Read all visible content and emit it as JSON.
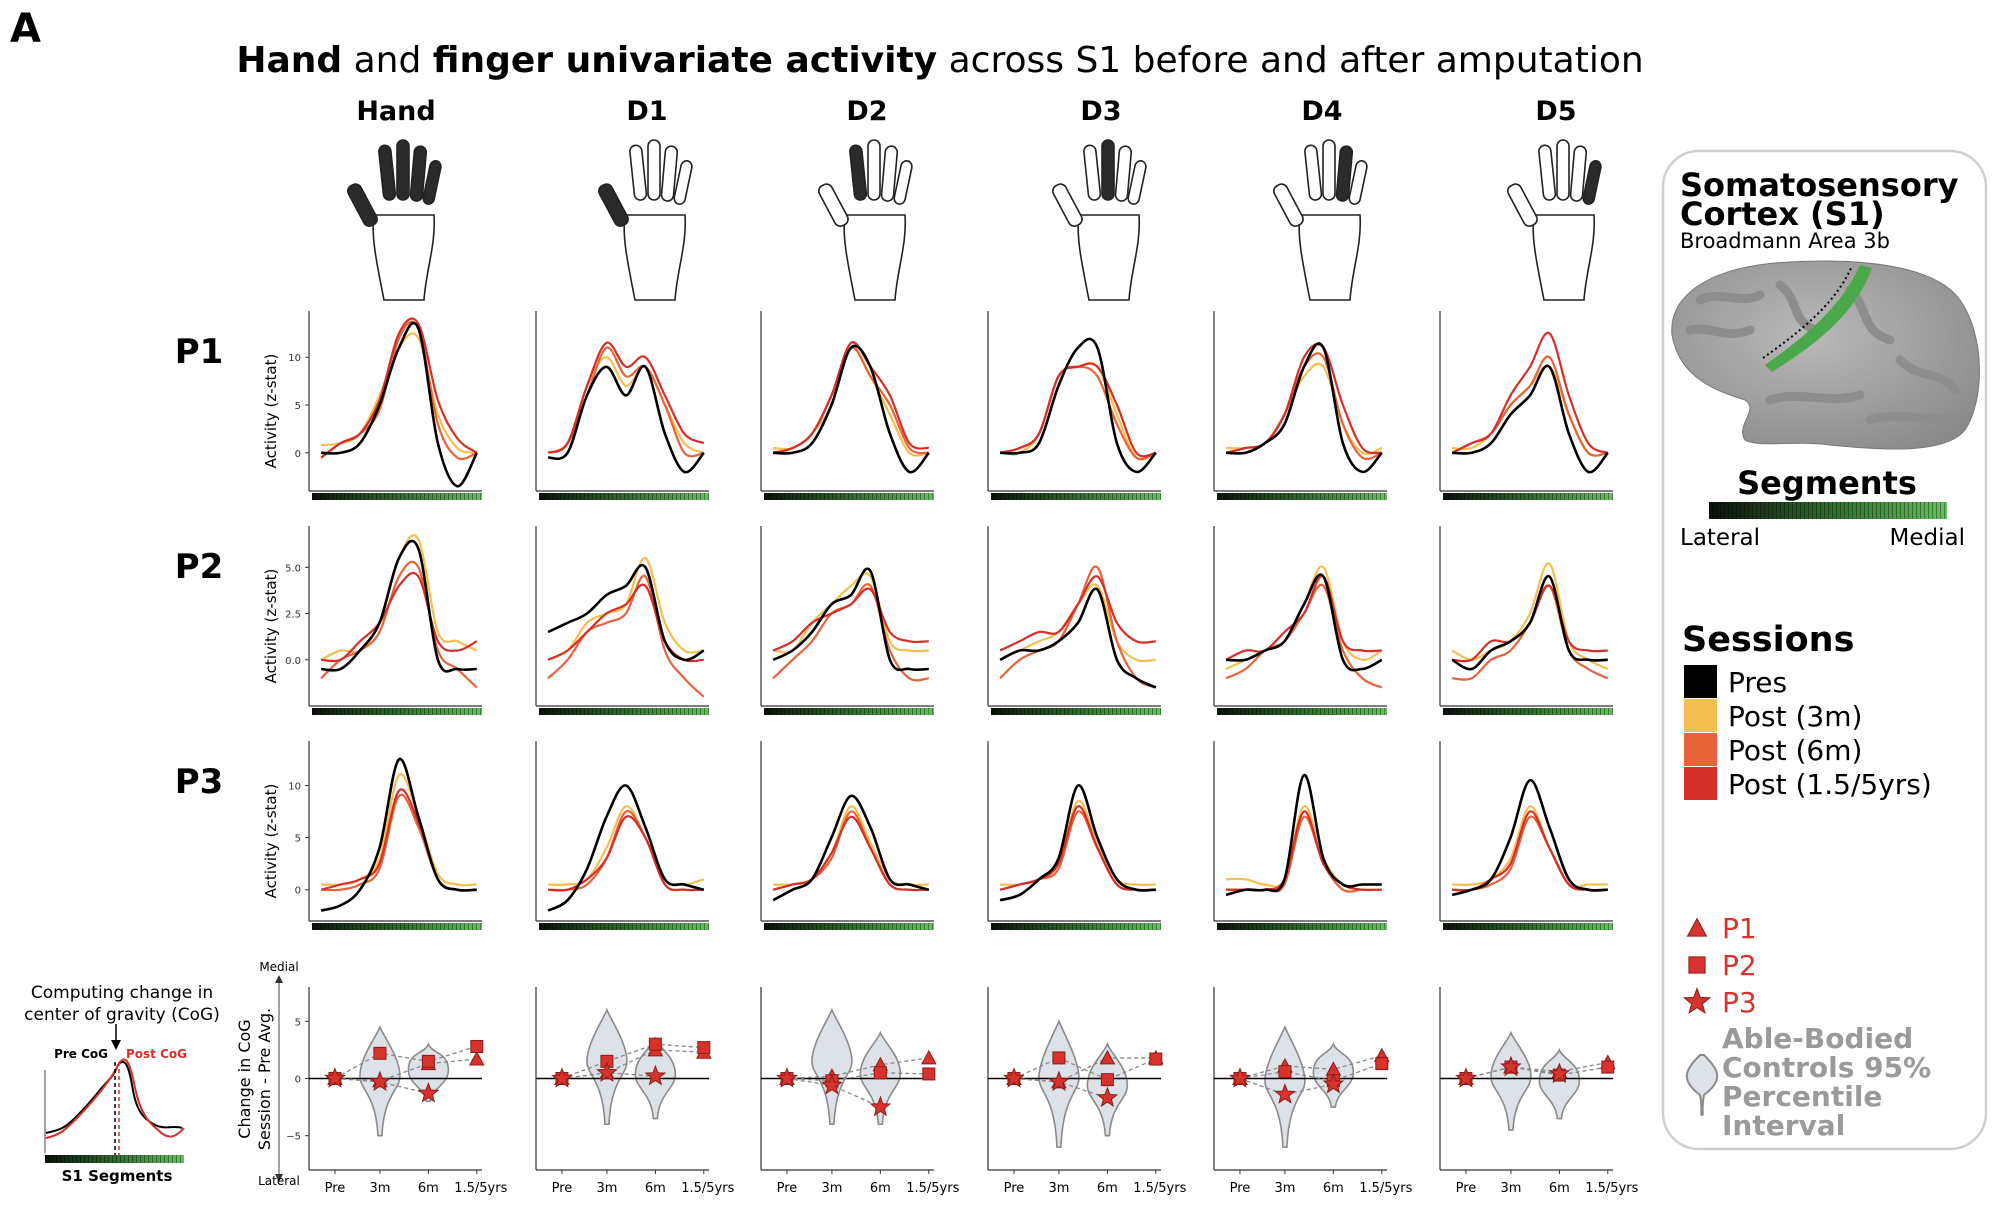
{
  "panel_letter": "A",
  "title": {
    "bold1": "Hand",
    "plain1": " and ",
    "bold2": "finger univariate activity",
    "plain2": " across S1 before and after amputation"
  },
  "columns": [
    "Hand",
    "D1",
    "D2",
    "D3",
    "D4",
    "D5"
  ],
  "rows": [
    "P1",
    "P2",
    "P3"
  ],
  "activity_ylabel": "Activity (z-stat)",
  "cog_ylabel_line1": "Change in CoG",
  "cog_ylabel_line2": "Session - Pre Avg.",
  "cog_medial": "Medial",
  "cog_lateral": "Lateral",
  "inset": {
    "line1": "Computing change in",
    "line2": "center of gravity (CoG)",
    "pre": "Pre CoG",
    "post": "Post CoG",
    "xlabel": "S1 Segments"
  },
  "legend": {
    "title1": "Somatosensory",
    "title2": "Cortex (S1)",
    "subtitle": "Broadmann Area 3b",
    "segments": "Segments",
    "lateral": "Lateral",
    "medial": "Medial",
    "sessions_title": "Sessions",
    "sessions": [
      {
        "label": "Pres",
        "color": "#000000"
      },
      {
        "label": "Post (3m)",
        "color": "#f5bf4f"
      },
      {
        "label": "Post (6m)",
        "color": "#e8623a"
      },
      {
        "label": "Post (1.5/5yrs)",
        "color": "#d52f2a"
      }
    ],
    "participants": [
      {
        "label": "P1",
        "marker": "triangle"
      },
      {
        "label": "P2",
        "marker": "square"
      },
      {
        "label": "P3",
        "marker": "star"
      }
    ],
    "marker_color": "#d8322c",
    "controls": [
      "Able-Bodied",
      "Controls 95%",
      "Percentile",
      "Interval"
    ]
  },
  "chart_data": {
    "type": "line",
    "x_description": "S1 segments, lateral to medial (0-8)",
    "row_ylims": {
      "P1": [
        -4,
        14
      ],
      "P2": [
        -2.5,
        6.8
      ],
      "P3": [
        -3,
        13.5
      ]
    },
    "row_ticks": {
      "P1": [
        "0",
        "5",
        "10"
      ],
      "P2": [
        "0.0",
        "2.5",
        "5.0"
      ],
      "P3": [
        "0",
        "5",
        "10"
      ]
    },
    "row_tick_values": {
      "P1": [
        0,
        5,
        10
      ],
      "P2": [
        0,
        2.5,
        5
      ],
      "P3": [
        0,
        5,
        10
      ]
    },
    "activity": {
      "P1": {
        "Hand": {
          "pre": [
            0,
            0,
            1,
            5,
            11,
            13,
            1,
            -3.5,
            0
          ],
          "m3": [
            0.8,
            1,
            2,
            6,
            11,
            12,
            4,
            0.5,
            0
          ],
          "m6": [
            -0.5,
            1,
            2,
            4.5,
            12,
            13,
            3,
            -0.5,
            0
          ],
          "y15": [
            -0.5,
            1,
            2,
            5.5,
            12.5,
            13.5,
            5.5,
            1.5,
            0
          ]
        },
        "D1": {
          "pre": [
            -0.5,
            0,
            6,
            9,
            6,
            9,
            2,
            -2,
            0
          ],
          "m3": [
            0,
            1,
            7,
            10,
            7,
            9,
            5,
            1,
            0
          ],
          "m6": [
            0,
            1,
            6,
            11,
            8,
            9,
            5,
            0,
            0
          ],
          "y15": [
            0,
            1,
            7,
            11.5,
            9,
            10,
            6,
            2,
            1
          ]
        },
        "D2": {
          "pre": [
            0,
            0,
            1,
            5,
            11,
            9,
            2,
            -2,
            0
          ],
          "m3": [
            0.5,
            0.5,
            2,
            5,
            11,
            8,
            4,
            0,
            0
          ],
          "m6": [
            0,
            0.5,
            2,
            6,
            11,
            8,
            5,
            0.5,
            0
          ],
          "y15": [
            0,
            0.5,
            2,
            6,
            11.5,
            9,
            6,
            1,
            0.5
          ]
        },
        "D3": {
          "pre": [
            0,
            0,
            1,
            7,
            11,
            11,
            1,
            -2,
            0
          ],
          "m3": [
            0,
            0,
            2,
            8,
            9,
            9,
            4,
            -0.5,
            0
          ],
          "m6": [
            0,
            0.5,
            2,
            8,
            9,
            8,
            3,
            -0.5,
            0
          ],
          "y15": [
            0,
            0.5,
            2,
            8,
            9,
            9,
            5,
            0,
            0
          ]
        },
        "D4": {
          "pre": [
            0,
            0,
            1,
            3,
            9,
            11,
            1,
            -2,
            0
          ],
          "m3": [
            0.5,
            0.5,
            1,
            4,
            8,
            9,
            3,
            0,
            0.5
          ],
          "m6": [
            0,
            0.5,
            1,
            4,
            9,
            10,
            3,
            -0.5,
            0
          ],
          "y15": [
            0,
            0.5,
            1,
            4,
            10,
            11,
            5,
            0.5,
            0
          ]
        },
        "D5": {
          "pre": [
            0,
            0,
            1,
            4,
            6,
            9,
            2,
            -2,
            0
          ],
          "m3": [
            0.5,
            0.5,
            2,
            5,
            7,
            9,
            4,
            0,
            0
          ],
          "m6": [
            0,
            1,
            2,
            5,
            7,
            10,
            4,
            0,
            0
          ],
          "y15": [
            0,
            1,
            2,
            6,
            9,
            12.5,
            6,
            1,
            0
          ]
        }
      },
      "P2": {
        "Hand": {
          "pre": [
            -0.5,
            -0.5,
            0.5,
            2,
            5.5,
            6,
            0,
            -0.5,
            -0.5
          ],
          "m3": [
            0,
            0.5,
            0.5,
            2,
            5.5,
            6.5,
            1.5,
            1,
            0.5
          ],
          "m6": [
            -1,
            0,
            0.5,
            1.5,
            4.5,
            5,
            0.5,
            -0.5,
            -1.5
          ],
          "y15": [
            0,
            0,
            1,
            2,
            4,
            4.5,
            1,
            0.5,
            1
          ]
        },
        "D1": {
          "pre": [
            1.5,
            2,
            2.5,
            3.5,
            4,
            5,
            1,
            0,
            0.5
          ],
          "m3": [
            0,
            0.5,
            2,
            2.5,
            3,
            5.5,
            2,
            0.5,
            0.5
          ],
          "m6": [
            -1,
            0,
            1.5,
            2,
            2.5,
            4.5,
            0.5,
            -1,
            -2
          ],
          "y15": [
            0,
            0.5,
            1.5,
            2.5,
            3,
            4,
            1,
            0,
            0
          ]
        },
        "D2": {
          "pre": [
            0,
            0.5,
            1.5,
            3,
            3.5,
            4.8,
            0,
            -0.5,
            -0.5
          ],
          "m3": [
            0.5,
            0.5,
            2,
            3,
            4,
            4.5,
            1,
            0.5,
            0.5
          ],
          "m6": [
            -1,
            0,
            1,
            2.5,
            3,
            4,
            0.5,
            -1,
            -1
          ],
          "y15": [
            0.5,
            1,
            2,
            2.5,
            3,
            3.8,
            1.5,
            1,
            1
          ]
        },
        "D3": {
          "pre": [
            0,
            0.5,
            0.5,
            1,
            2,
            3.8,
            0,
            -1,
            -1.5
          ],
          "m3": [
            0,
            0.5,
            1,
            1.5,
            3,
            4,
            1,
            0,
            0
          ],
          "m6": [
            -1,
            0,
            0.5,
            1,
            3,
            5,
            1,
            -1,
            -1.5
          ],
          "y15": [
            0.5,
            1,
            1.5,
            1.5,
            3,
            4.5,
            2,
            1,
            1
          ]
        },
        "D4": {
          "pre": [
            0,
            0,
            0.5,
            1,
            3,
            4.5,
            0,
            -0.5,
            0
          ],
          "m3": [
            -0.5,
            0,
            0.5,
            1,
            3,
            5,
            1,
            0,
            0.5
          ],
          "m6": [
            -1,
            -0.5,
            0.5,
            1,
            2.5,
            4,
            0.5,
            -1,
            -1.5
          ],
          "y15": [
            0,
            0.5,
            0.5,
            1.5,
            2.5,
            4.5,
            1,
            0.5,
            0.5
          ]
        },
        "D5": {
          "pre": [
            0,
            -0.5,
            0.5,
            1,
            2,
            4.5,
            0.5,
            0,
            0
          ],
          "m3": [
            0.5,
            0,
            0.5,
            1,
            2.5,
            5.2,
            1,
            0,
            -0.5
          ],
          "m6": [
            -1,
            -1,
            0,
            0.5,
            2,
            4,
            0.5,
            -0.5,
            -1
          ],
          "y15": [
            0,
            0,
            1,
            1,
            2,
            4,
            1,
            0.5,
            0.5
          ]
        }
      },
      "P3": {
        "Hand": {
          "pre": [
            -2,
            -1.5,
            0,
            4,
            12.5,
            7,
            1,
            0,
            0
          ],
          "m3": [
            0.5,
            0.5,
            1,
            3,
            11,
            7,
            1.5,
            0.5,
            0.5
          ],
          "m6": [
            0,
            0,
            0.5,
            2,
            9,
            6,
            1,
            0,
            0
          ],
          "y15": [
            0,
            0.5,
            1,
            2.5,
            9.5,
            6.5,
            1,
            0,
            0
          ]
        },
        "D1": {
          "pre": [
            -2,
            -1,
            2,
            7,
            10,
            6,
            1,
            0.5,
            0
          ],
          "m3": [
            0.5,
            0.5,
            1,
            4,
            8,
            5,
            1,
            0.5,
            1
          ],
          "m6": [
            0,
            0,
            0.5,
            3,
            7.5,
            5,
            0.5,
            0,
            0
          ],
          "y15": [
            0,
            0,
            1,
            3,
            7,
            5,
            0.5,
            0,
            0
          ]
        },
        "D2": {
          "pre": [
            -1,
            0,
            1,
            5,
            9,
            6,
            1,
            0.5,
            0
          ],
          "m3": [
            0.5,
            0.5,
            1,
            3.5,
            8,
            4.5,
            1,
            0.5,
            0.5
          ],
          "m6": [
            0,
            0.5,
            1,
            3,
            7.5,
            4,
            0.5,
            0,
            0
          ],
          "y15": [
            0,
            0.5,
            1,
            3.5,
            7,
            4,
            0.5,
            0,
            0
          ]
        },
        "D3": {
          "pre": [
            -1,
            -0.5,
            1,
            3,
            10,
            5,
            1,
            0,
            0
          ],
          "m3": [
            0.5,
            0.5,
            1,
            2.5,
            8.5,
            4.5,
            1,
            0.5,
            0.5
          ],
          "m6": [
            0,
            0.5,
            1,
            2,
            7.5,
            4,
            0.5,
            0,
            0
          ],
          "y15": [
            0,
            0.5,
            1,
            2.5,
            8,
            4,
            0.5,
            0,
            0
          ]
        },
        "D4": {
          "pre": [
            -0.5,
            0,
            0,
            1,
            11,
            3,
            0.5,
            0.5,
            0.5
          ],
          "m3": [
            1,
            1,
            0.5,
            1,
            8,
            3,
            0.5,
            0.5,
            0.5
          ],
          "m6": [
            0,
            0,
            0,
            0.5,
            7,
            2.5,
            0,
            0,
            0
          ],
          "y15": [
            0,
            0,
            0,
            1,
            7.5,
            2.5,
            0.5,
            0,
            0
          ]
        },
        "D5": {
          "pre": [
            -0.5,
            0,
            1,
            5,
            10.5,
            6,
            1,
            0,
            0
          ],
          "m3": [
            0.5,
            0.5,
            1,
            3,
            8,
            4,
            0.5,
            0.5,
            0.5
          ],
          "m6": [
            0,
            0,
            0.5,
            2,
            7,
            4,
            0.5,
            0,
            0
          ],
          "y15": [
            0,
            0,
            1,
            2.5,
            7.5,
            4,
            0.5,
            0,
            0
          ]
        }
      }
    },
    "cog": {
      "x_labels": [
        "Pre",
        "3m",
        "6m",
        "1.5/5yrs"
      ],
      "ylim": [
        -8,
        8
      ],
      "ticks": [
        5,
        0,
        -5
      ],
      "tick_labels": [
        "5",
        "0",
        "−5"
      ],
      "columns": {
        "Hand": {
          "P1": [
            0,
            -0.2,
            1.3,
            1.7
          ],
          "P2": [
            0,
            2.2,
            1.5,
            2.8
          ],
          "P3": [
            0,
            -0.3,
            -1.3,
            null
          ],
          "violin_3m": [
            -5,
            4.5
          ],
          "violin_6m": [
            -2,
            3
          ]
        },
        "D1": {
          "P1": [
            0,
            0.5,
            2.5,
            2.3
          ],
          "P2": [
            0,
            1.5,
            3,
            2.7
          ],
          "P3": [
            0,
            0.5,
            0.2,
            null
          ],
          "violin_3m": [
            -4,
            6
          ],
          "violin_6m": [
            -3.5,
            3.5
          ]
        },
        "D2": {
          "P1": [
            0,
            0.2,
            1.2,
            1.8
          ],
          "P2": [
            0,
            -0.2,
            0.5,
            0.4
          ],
          "P3": [
            0,
            -0.6,
            -2.5,
            null
          ],
          "violin_3m": [
            -4,
            6
          ],
          "violin_6m": [
            -4,
            4
          ]
        },
        "D3": {
          "P1": [
            0,
            -0.3,
            1.8,
            1.8
          ],
          "P2": [
            0,
            1.8,
            -0.1,
            1.7
          ],
          "P3": [
            0,
            -0.3,
            -1.7,
            null
          ],
          "violin_3m": [
            -6,
            5
          ],
          "violin_6m": [
            -5,
            3
          ]
        },
        "D4": {
          "P1": [
            0,
            1.1,
            0.8,
            2
          ],
          "P2": [
            0,
            0.6,
            -0.2,
            1.3
          ],
          "P3": [
            0,
            -1.4,
            -0.5,
            null
          ],
          "violin_3m": [
            -6,
            4.5
          ],
          "violin_6m": [
            -2.5,
            3
          ]
        },
        "D5": {
          "P1": [
            0,
            1.0,
            0.6,
            1.4
          ],
          "P2": [
            0,
            1.0,
            0.3,
            1.0
          ],
          "P3": [
            0,
            1,
            0.4,
            null
          ],
          "violin_3m": [
            -4.5,
            4
          ],
          "violin_6m": [
            -3.5,
            2.5
          ]
        }
      }
    }
  }
}
